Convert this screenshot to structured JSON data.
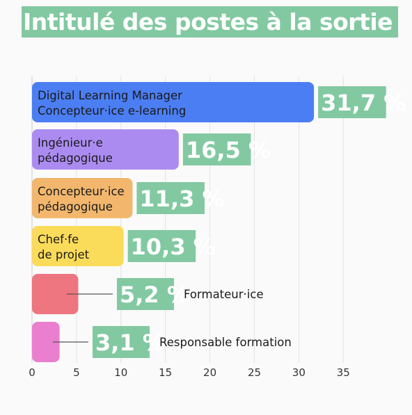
{
  "header": {
    "title": "Intitulé des postes à la sortie"
  },
  "chart_data": {
    "type": "bar",
    "orientation": "horizontal",
    "title": "Intitulé des postes à la sortie",
    "xlim": [
      0,
      35
    ],
    "x_ticks": [
      0,
      5,
      10,
      15,
      20,
      25,
      30,
      35
    ],
    "grid": true,
    "categories": [
      [
        "Digital Learning Manager",
        "Concepteur·ice e-learning"
      ],
      [
        "Ingénieur·e",
        "pédagogique"
      ],
      [
        "Concepteur·ice",
        "pédagogique"
      ],
      [
        "Chef·fe",
        "de projet"
      ],
      [
        "Formateur·ice"
      ],
      [
        "Responsable formation"
      ]
    ],
    "values": [
      31.7,
      16.5,
      11.3,
      10.3,
      5.2,
      3.1
    ],
    "value_labels": [
      "31,7 %",
      "16,5 %",
      "11,3 %",
      "10,3 %",
      "5,2 %",
      "3,1 %"
    ],
    "bar_colors": [
      "#4b7ef2",
      "#ac8bf1",
      "#f2b76d",
      "#fbdb5a",
      "#ee7680",
      "#ea7fcf"
    ],
    "label_background": "#82c9a1"
  }
}
